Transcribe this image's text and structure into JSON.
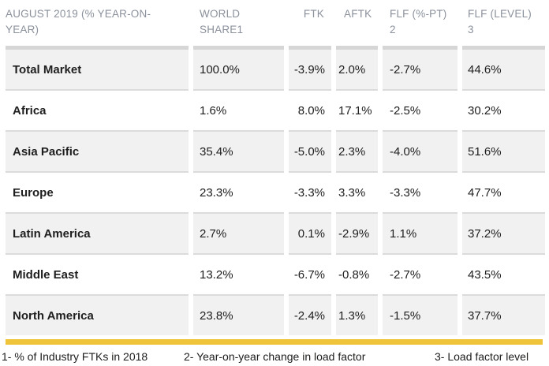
{
  "chart_data": {
    "type": "table",
    "title": "AUGUST 2019 (% YEAR-ON-YEAR)",
    "columns": [
      {
        "id": "region",
        "label": "AUGUST 2019 (% YEAR-ON-YEAR)",
        "lines": [
          "AUGUST 2019 (% YEAR-ON-",
          "YEAR)"
        ]
      },
      {
        "id": "world_share",
        "label": "WORLD SHARE1",
        "lines": [
          "WORLD",
          "SHARE1"
        ]
      },
      {
        "id": "ftk",
        "label": "FTK",
        "lines": [
          "FTK"
        ]
      },
      {
        "id": "aftk",
        "label": "AFTK",
        "lines": [
          "AFTK"
        ]
      },
      {
        "id": "flf_pt",
        "label": "FLF (%-PT) 2",
        "lines": [
          "FLF (%-PT)",
          "2"
        ]
      },
      {
        "id": "flf_level",
        "label": "FLF (LEVEL) 3",
        "lines": [
          "FLF (LEVEL)",
          "3"
        ]
      }
    ],
    "rows": [
      {
        "region": "Total Market",
        "world_share": "100.0%",
        "ftk": "-3.9%",
        "aftk": "2.0%",
        "flf_pt": "-2.7%",
        "flf_level": "44.6%"
      },
      {
        "region": "Africa",
        "world_share": "1.6%",
        "ftk": "8.0%",
        "aftk": "17.1%",
        "flf_pt": "-2.5%",
        "flf_level": "30.2%"
      },
      {
        "region": "Asia Pacific",
        "world_share": "35.4%",
        "ftk": "-5.0%",
        "aftk": "2.3%",
        "flf_pt": "-4.0%",
        "flf_level": "51.6%"
      },
      {
        "region": "Europe",
        "world_share": "23.3%",
        "ftk": "-3.3%",
        "aftk": "3.3%",
        "flf_pt": "-3.3%",
        "flf_level": "47.7%"
      },
      {
        "region": "Latin America",
        "world_share": "2.7%",
        "ftk": "0.1%",
        "aftk": "-2.9%",
        "flf_pt": "1.1%",
        "flf_level": "37.2%"
      },
      {
        "region": "Middle East",
        "world_share": "13.2%",
        "ftk": "-6.7%",
        "aftk": "-0.8%",
        "flf_pt": "-2.7%",
        "flf_level": "43.5%"
      },
      {
        "region": "North America",
        "world_share": "23.8%",
        "ftk": "-2.4%",
        "aftk": "1.3%",
        "flf_pt": "-1.5%",
        "flf_level": "37.7%"
      }
    ],
    "footnotes": [
      "1- % of Industry FTKs in 2018",
      "2- Year-on-year change in load factor",
      "3- Load factor level"
    ],
    "layout_hints": {
      "zebra_striping": true,
      "ftk_column_alignment": "right",
      "other_numeric_alignment": "left"
    }
  },
  "colors": {
    "accent_gold": "#EFC43B",
    "row_shade": "#F2F1F1",
    "header_separator": "#D6D6D6",
    "row_separator": "#DBDBDB",
    "header_text": "#8B919C",
    "body_text": "#1F1E1E"
  }
}
